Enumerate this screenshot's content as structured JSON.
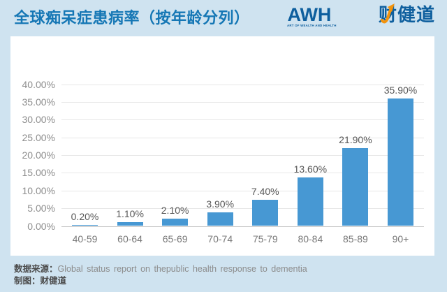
{
  "header": {
    "title": "全球痴呆症患病率（按年龄分列）",
    "logo": {
      "wordmark": "AWH",
      "tagline": "ART OF WEALTH AND HEALTH",
      "cn_name": "财健道"
    }
  },
  "chart_data": {
    "type": "bar",
    "title": "全球痴呆症患病率（按年龄分列）",
    "categories": [
      "40-59",
      "60-64",
      "65-69",
      "70-74",
      "75-79",
      "80-84",
      "85-89",
      "90+"
    ],
    "values": [
      0.2,
      1.1,
      2.1,
      3.9,
      7.4,
      13.6,
      21.9,
      35.9
    ],
    "value_labels": [
      "0.20%",
      "1.10%",
      "2.10%",
      "3.90%",
      "7.40%",
      "13.60%",
      "21.90%",
      "35.90%"
    ],
    "xlabel": "",
    "ylabel": "",
    "ylim": [
      0,
      40
    ],
    "yticks": [
      0,
      5,
      10,
      15,
      20,
      25,
      30,
      35,
      40
    ],
    "ytick_labels": [
      "0.00%",
      "5.00%",
      "10.00%",
      "15.00%",
      "20.00%",
      "25.00%",
      "30.00%",
      "35.00%",
      "40.00%"
    ],
    "grid": true,
    "legend_position": "none",
    "bar_color": "#4798d3"
  },
  "footer": {
    "source_label": "数据来源：",
    "source_text": "Global status report on thepublic health response to dementia",
    "credit_label": "制图：",
    "credit_text": "财健道"
  },
  "colors": {
    "background": "#cfe3f0",
    "card": "#ffffff",
    "title_blue": "#1577b5",
    "logo_blue": "#0e5f9e",
    "arrow_orange": "#f2930d",
    "bar_blue": "#4798d3",
    "gridline": "#e7e7e7",
    "axis_line": "#c3c3c3"
  }
}
